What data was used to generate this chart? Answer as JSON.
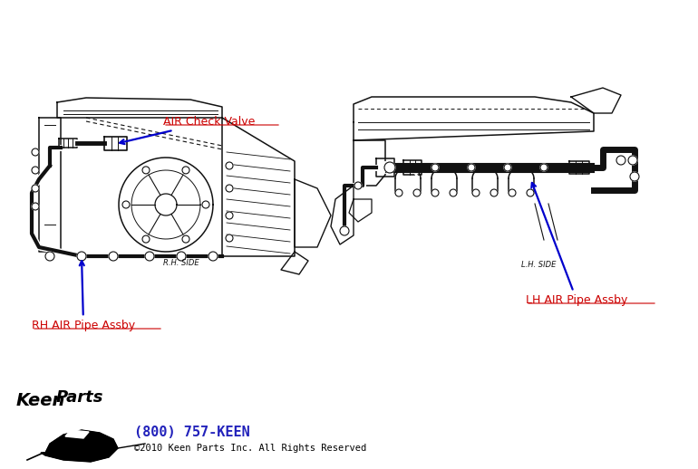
{
  "bg_color": "#ffffff",
  "label_check_valve": "AIR Check Valve",
  "label_rh_pipe": "RH AIR Pipe Assby",
  "label_lh_pipe": "LH AIR Pipe Assby",
  "label_rh_side": "R.H. SIDE",
  "label_lh_side": "L.H. SIDE",
  "label_phone": "(800) 757-KEEN",
  "label_copyright": "©2010 Keen Parts Inc. All Rights Reserved",
  "label_color_red": "#cc0000",
  "label_color_blue": "#2222bb",
  "arrow_color": "#0000cc",
  "line_color": "#111111",
  "fig_width": 7.7,
  "fig_height": 5.18,
  "dpi": 100
}
